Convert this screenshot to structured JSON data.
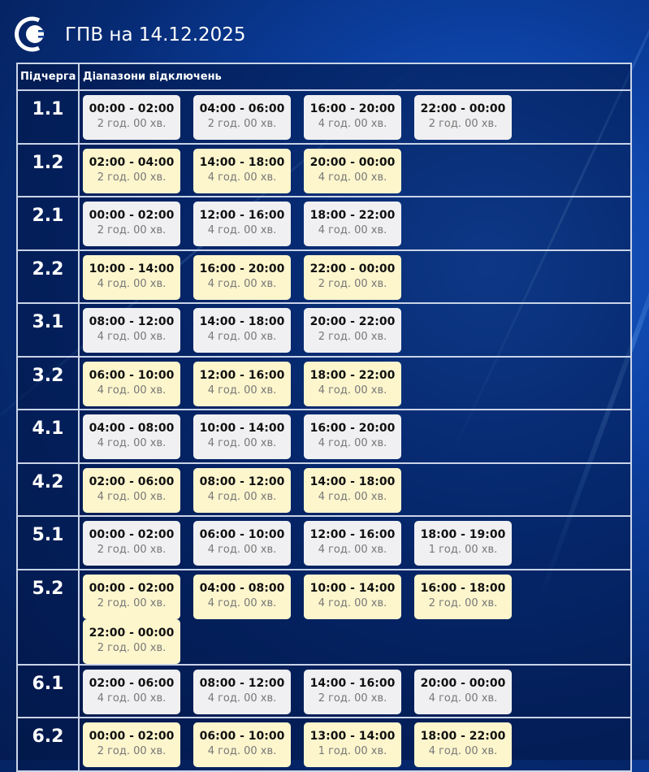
{
  "header": {
    "title": "ГПВ на 14.12.2025",
    "logo": "energy-company-logo"
  },
  "table": {
    "headers": [
      "Підчерга",
      "Діапазони відключень"
    ],
    "colors": {
      "odd": "#f0f0f2",
      "even": "#fdf6cd"
    },
    "rows": [
      {
        "group": "1.1",
        "slots": [
          [
            "00:00 - 02:00",
            "2 год. 00 хв."
          ],
          [
            "04:00 - 06:00",
            "2 год. 00 хв."
          ],
          [
            "16:00 - 20:00",
            "4 год. 00 хв."
          ],
          [
            "22:00 - 00:00",
            "2 год. 00 хв."
          ]
        ]
      },
      {
        "group": "1.2",
        "slots": [
          [
            "02:00 - 04:00",
            "2 год. 00 хв."
          ],
          [
            "14:00 - 18:00",
            "4 год. 00 хв."
          ],
          [
            "20:00 - 00:00",
            "4 год. 00 хв."
          ]
        ]
      },
      {
        "group": "2.1",
        "slots": [
          [
            "00:00 - 02:00",
            "2 год. 00 хв."
          ],
          [
            "12:00 - 16:00",
            "4 год. 00 хв."
          ],
          [
            "18:00 - 22:00",
            "4 год. 00 хв."
          ]
        ]
      },
      {
        "group": "2.2",
        "slots": [
          [
            "10:00 - 14:00",
            "4 год. 00 хв."
          ],
          [
            "16:00 - 20:00",
            "4 год. 00 хв."
          ],
          [
            "22:00 - 00:00",
            "2 год. 00 хв."
          ]
        ]
      },
      {
        "group": "3.1",
        "slots": [
          [
            "08:00 - 12:00",
            "4 год. 00 хв."
          ],
          [
            "14:00 - 18:00",
            "4 год. 00 хв."
          ],
          [
            "20:00 - 22:00",
            "2 год. 00 хв."
          ]
        ]
      },
      {
        "group": "3.2",
        "slots": [
          [
            "06:00 - 10:00",
            "4 год. 00 хв."
          ],
          [
            "12:00 - 16:00",
            "4 год. 00 хв."
          ],
          [
            "18:00 - 22:00",
            "4 год. 00 хв."
          ]
        ]
      },
      {
        "group": "4.1",
        "slots": [
          [
            "04:00 - 08:00",
            "4 год. 00 хв."
          ],
          [
            "10:00 - 14:00",
            "4 год. 00 хв."
          ],
          [
            "16:00 - 20:00",
            "4 год. 00 хв."
          ]
        ]
      },
      {
        "group": "4.2",
        "slots": [
          [
            "02:00 - 06:00",
            "4 год. 00 хв."
          ],
          [
            "08:00 - 12:00",
            "4 год. 00 хв."
          ],
          [
            "14:00 - 18:00",
            "4 год. 00 хв."
          ]
        ]
      },
      {
        "group": "5.1",
        "slots": [
          [
            "00:00 - 02:00",
            "2 год. 00 хв."
          ],
          [
            "06:00 - 10:00",
            "4 год. 00 хв."
          ],
          [
            "12:00 - 16:00",
            "4 год. 00 хв."
          ],
          [
            "18:00 - 19:00",
            "1 год. 00 хв."
          ]
        ]
      },
      {
        "group": "5.2",
        "slots": [
          [
            "00:00 - 02:00",
            "2 год. 00 хв."
          ],
          [
            "04:00 - 08:00",
            "4 год. 00 хв."
          ],
          [
            "10:00 - 14:00",
            "4 год. 00 хв."
          ],
          [
            "16:00 - 18:00",
            "2 год. 00 хв."
          ],
          [
            "22:00 - 00:00",
            "2 год. 00 хв."
          ]
        ]
      },
      {
        "group": "6.1",
        "slots": [
          [
            "02:00 - 06:00",
            "4 год. 00 хв."
          ],
          [
            "08:00 - 12:00",
            "4 год. 00 хв."
          ],
          [
            "14:00 - 16:00",
            "2 год. 00 хв."
          ],
          [
            "20:00 - 00:00",
            "4 год. 00 хв."
          ]
        ]
      },
      {
        "group": "6.2",
        "slots": [
          [
            "00:00 - 02:00",
            "2 год. 00 хв."
          ],
          [
            "06:00 - 10:00",
            "4 год. 00 хв."
          ],
          [
            "13:00 - 14:00",
            "1 год. 00 хв."
          ],
          [
            "18:00 - 22:00",
            "4 год. 00 хв."
          ]
        ]
      }
    ]
  }
}
